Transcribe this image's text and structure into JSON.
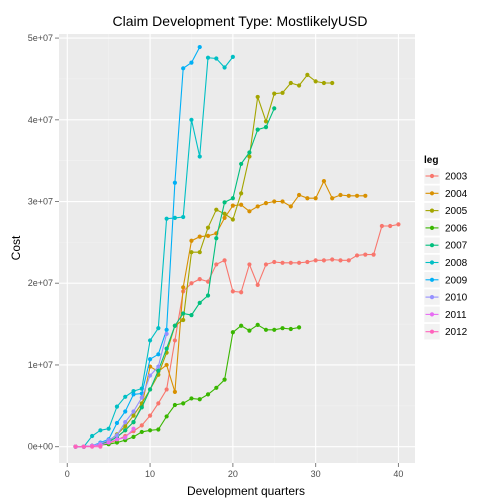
{
  "chart_data": {
    "type": "line",
    "title": "Claim Development  Type: MostlikelyUSD",
    "xlabel": "Development quarters",
    "ylabel": "Cost",
    "xlim": [
      -1,
      42
    ],
    "ylim": [
      -2000000,
      50500000
    ],
    "x_ticks": [
      0,
      10,
      20,
      30,
      40
    ],
    "y_ticks": [
      0,
      10000000,
      20000000,
      30000000,
      40000000,
      50000000
    ],
    "y_tick_labels": [
      "0e+00",
      "1e+07",
      "2e+07",
      "3e+07",
      "4e+07",
      "5e+07"
    ],
    "grid": true,
    "legend_position": "right",
    "legend_title": "leg",
    "series": [
      {
        "name": "2003",
        "color": "#F8766D",
        "x": [
          1,
          2,
          3,
          4,
          5,
          6,
          7,
          8,
          9,
          10,
          11,
          12,
          13,
          14,
          15,
          16,
          17,
          18,
          19,
          20,
          21,
          22,
          23,
          24,
          25,
          26,
          27,
          28,
          29,
          30,
          31,
          32,
          33,
          34,
          35,
          36,
          37,
          38,
          39,
          40
        ],
        "y": [
          0,
          0,
          100000,
          200000,
          400000,
          800000,
          1300000,
          1900000,
          2600000,
          3800000,
          5300000,
          7000000,
          13000000,
          19000000,
          20000000,
          20500000,
          20200000,
          22300000,
          22800000,
          19000000,
          18900000,
          22300000,
          19800000,
          22300000,
          22600000,
          22500000,
          22500000,
          22500000,
          22600000,
          22800000,
          22800000,
          22900000,
          22800000,
          22800000,
          23400000,
          23500000,
          23500000,
          27000000,
          27000000,
          27200000
        ]
      },
      {
        "name": "2004",
        "color": "#D89000",
        "x": [
          1,
          2,
          3,
          4,
          5,
          6,
          7,
          8,
          9,
          10,
          11,
          12,
          13,
          14,
          15,
          16,
          17,
          18,
          19,
          20,
          21,
          22,
          23,
          24,
          25,
          26,
          27,
          28,
          29,
          30,
          31,
          32,
          33,
          34,
          35,
          36
        ],
        "y": [
          0,
          0,
          100000,
          300000,
          600000,
          1200000,
          2000000,
          3000000,
          5000000,
          9800000,
          9200000,
          10000000,
          6700000,
          19500000,
          25200000,
          25700000,
          25800000,
          26100000,
          28000000,
          29500000,
          29600000,
          28800000,
          29400000,
          29800000,
          30000000,
          30000000,
          29400000,
          30800000,
          30400000,
          30400000,
          32500000,
          30400000,
          30800000,
          30700000,
          30700000,
          30700000
        ]
      },
      {
        "name": "2005",
        "color": "#A3A500",
        "x": [
          1,
          2,
          3,
          4,
          5,
          6,
          7,
          8,
          9,
          10,
          11,
          12,
          13,
          14,
          15,
          16,
          17,
          18,
          19,
          20,
          21,
          22,
          23,
          24,
          25,
          26,
          27,
          28,
          29,
          30,
          31,
          32
        ],
        "y": [
          0,
          0,
          100000,
          300000,
          700000,
          1500000,
          2500000,
          3800000,
          5300000,
          7000000,
          8800000,
          11500000,
          14800000,
          15500000,
          23800000,
          23800000,
          26800000,
          29000000,
          28500000,
          27800000,
          31000000,
          35500000,
          42800000,
          39800000,
          43200000,
          43300000,
          44500000,
          44200000,
          45500000,
          44700000,
          44500000,
          44500000
        ]
      },
      {
        "name": "2006",
        "color": "#39B600",
        "x": [
          1,
          2,
          3,
          4,
          5,
          6,
          7,
          8,
          9,
          10,
          11,
          12,
          13,
          14,
          15,
          16,
          17,
          18,
          19,
          20,
          21,
          22,
          23,
          24,
          25,
          26,
          27,
          28
        ],
        "y": [
          0,
          0,
          100000,
          200000,
          300000,
          500000,
          800000,
          1200000,
          1800000,
          2000000,
          2100000,
          3700000,
          5100000,
          5300000,
          5900000,
          5800000,
          6400000,
          7200000,
          8200000,
          14000000,
          14800000,
          14200000,
          14900000,
          14300000,
          14300000,
          14500000,
          14400000,
          14600000
        ]
      },
      {
        "name": "2007",
        "color": "#00BF7D",
        "x": [
          1,
          2,
          3,
          4,
          5,
          6,
          7,
          8,
          9,
          10,
          11,
          12,
          13,
          14,
          15,
          16,
          17,
          18,
          19,
          20,
          21,
          22,
          23,
          24,
          25
        ],
        "y": [
          0,
          0,
          100000,
          300000,
          600000,
          1200000,
          2000000,
          3000000,
          4800000,
          7000000,
          9300000,
          12000000,
          14800000,
          16300000,
          16100000,
          17600000,
          18500000,
          25500000,
          29900000,
          30400000,
          34600000,
          36000000,
          38800000,
          39100000,
          41400000
        ]
      },
      {
        "name": "2008",
        "color": "#00BFC4",
        "x": [
          1,
          2,
          3,
          4,
          5,
          6,
          7,
          8,
          9,
          10,
          11,
          12,
          13,
          14,
          15,
          16,
          17,
          18,
          19,
          20
        ],
        "y": [
          0,
          0,
          1300000,
          2000000,
          2200000,
          4900000,
          6100000,
          6800000,
          7100000,
          13000000,
          14500000,
          27900000,
          28000000,
          28100000,
          40000000,
          35500000,
          47600000,
          47500000,
          46400000,
          47700000
        ]
      },
      {
        "name": "2009",
        "color": "#00B0F6",
        "x": [
          1,
          2,
          3,
          4,
          5,
          6,
          7,
          8,
          9,
          10,
          11,
          12,
          13,
          14,
          15,
          16
        ],
        "y": [
          0,
          0,
          100000,
          500000,
          900000,
          2900000,
          4300000,
          6400000,
          6500000,
          10700000,
          11300000,
          14300000,
          32300000,
          46300000,
          47000000,
          48900000
        ]
      },
      {
        "name": "2010",
        "color": "#9590FF",
        "x": [
          1,
          2,
          3,
          4,
          5,
          6,
          7,
          8,
          9,
          10,
          11,
          12
        ],
        "y": [
          0,
          0,
          100000,
          400000,
          800000,
          1400000,
          3000000,
          4300000,
          6000000,
          8700000,
          9800000,
          13800000
        ]
      },
      {
        "name": "2011",
        "color": "#E76BF3",
        "x": [
          1,
          2,
          3,
          4,
          5,
          6,
          7,
          8
        ],
        "y": [
          0,
          0,
          100000,
          200000,
          500000,
          900000,
          1100000,
          2200000
        ]
      },
      {
        "name": "2012",
        "color": "#FF62BC",
        "x": [
          1,
          2,
          3,
          4
        ],
        "y": [
          0,
          0,
          0,
          0
        ]
      }
    ]
  }
}
